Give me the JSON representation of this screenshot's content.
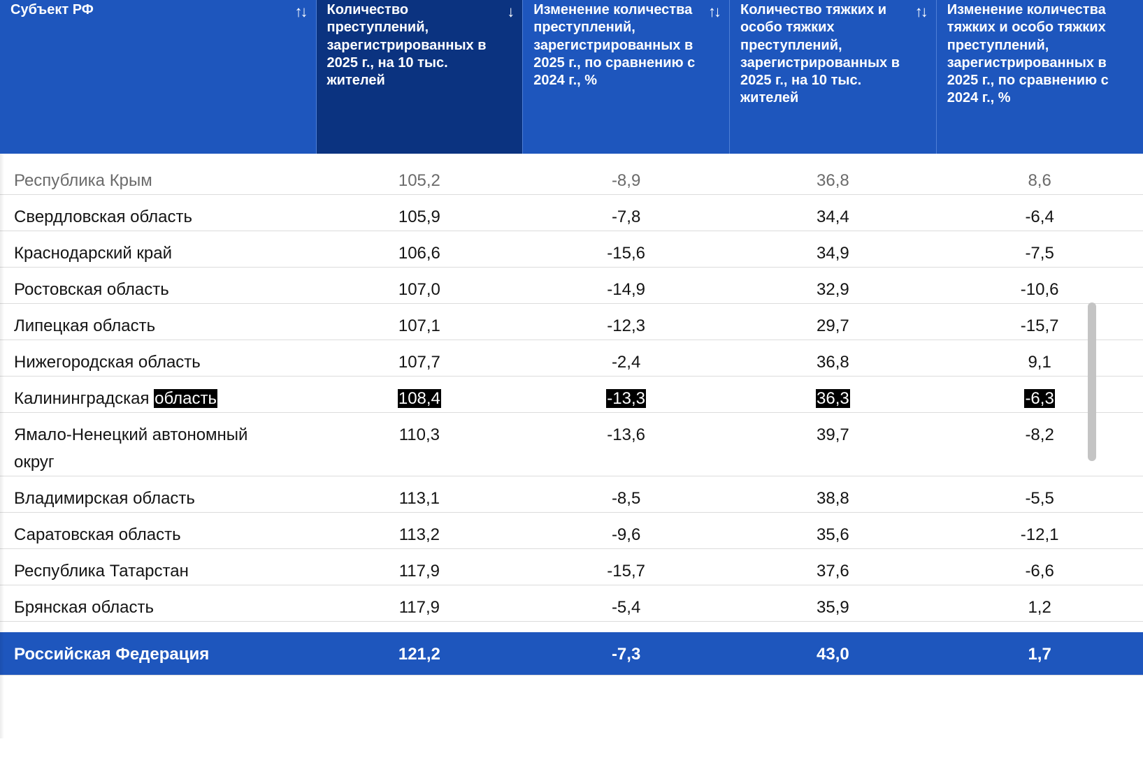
{
  "table": {
    "columns": [
      {
        "label": "Субъект РФ",
        "sort": "↑↓"
      },
      {
        "label": "Количество преступлений, зарегистрированных в 2025 г., на 10 тыс. жителей",
        "sort": "↓",
        "active": true
      },
      {
        "label": "Изменение количества преступлений, зарегистрированных в 2025 г., по сравнению с 2024 г., %",
        "sort": "↑↓"
      },
      {
        "label": "Количество тяжких и особо тяжких преступлений, зарегистрированных в 2025 г., на 10 тыс. жителей",
        "sort": "↑↓"
      },
      {
        "label": "Изменение количества тяжких и особо тяжких преступлений, зарегистрированных в 2025 г., по сравнению с 2024 г., %",
        "sort": null
      }
    ],
    "rows": [
      {
        "cells": [
          "Республика Крым",
          "105,2",
          "-8,9",
          "36,8",
          "8,6"
        ],
        "faded": true
      },
      {
        "cells": [
          "Свердловская область",
          "105,9",
          "-7,8",
          "34,4",
          "-6,4"
        ]
      },
      {
        "cells": [
          "Краснодарский край",
          "106,6",
          "-15,6",
          "34,9",
          "-7,5"
        ]
      },
      {
        "cells": [
          "Ростовская область",
          "107,0",
          "-14,9",
          "32,9",
          "-10,6"
        ]
      },
      {
        "cells": [
          "Липецкая область",
          "107,1",
          "-12,3",
          "29,7",
          "-15,7"
        ]
      },
      {
        "cells": [
          "Нижегородская область",
          "107,7",
          "-2,4",
          "36,8",
          "9,1"
        ]
      },
      {
        "cells": [
          "Калининградская область",
          "108,4",
          "-13,3",
          "36,3",
          "-6,3"
        ],
        "selected": true
      },
      {
        "cells": [
          "Ямало-Ненецкий автономный округ",
          "110,3",
          "-13,6",
          "39,7",
          "-8,2"
        ]
      },
      {
        "cells": [
          "Владимирская область",
          "113,1",
          "-8,5",
          "38,8",
          "-5,5"
        ]
      },
      {
        "cells": [
          "Саратовская область",
          "113,2",
          "-9,6",
          "35,6",
          "-12,1"
        ]
      },
      {
        "cells": [
          "Республика Татарстан",
          "117,9",
          "-15,7",
          "37,6",
          "-6,6"
        ]
      },
      {
        "cells": [
          "Брянская область",
          "117,9",
          "-5,4",
          "35,9",
          "1,2"
        ]
      }
    ],
    "footer": [
      "Российская Федерация",
      "121,2",
      "-7,3",
      "43,0",
      "1,7"
    ]
  }
}
